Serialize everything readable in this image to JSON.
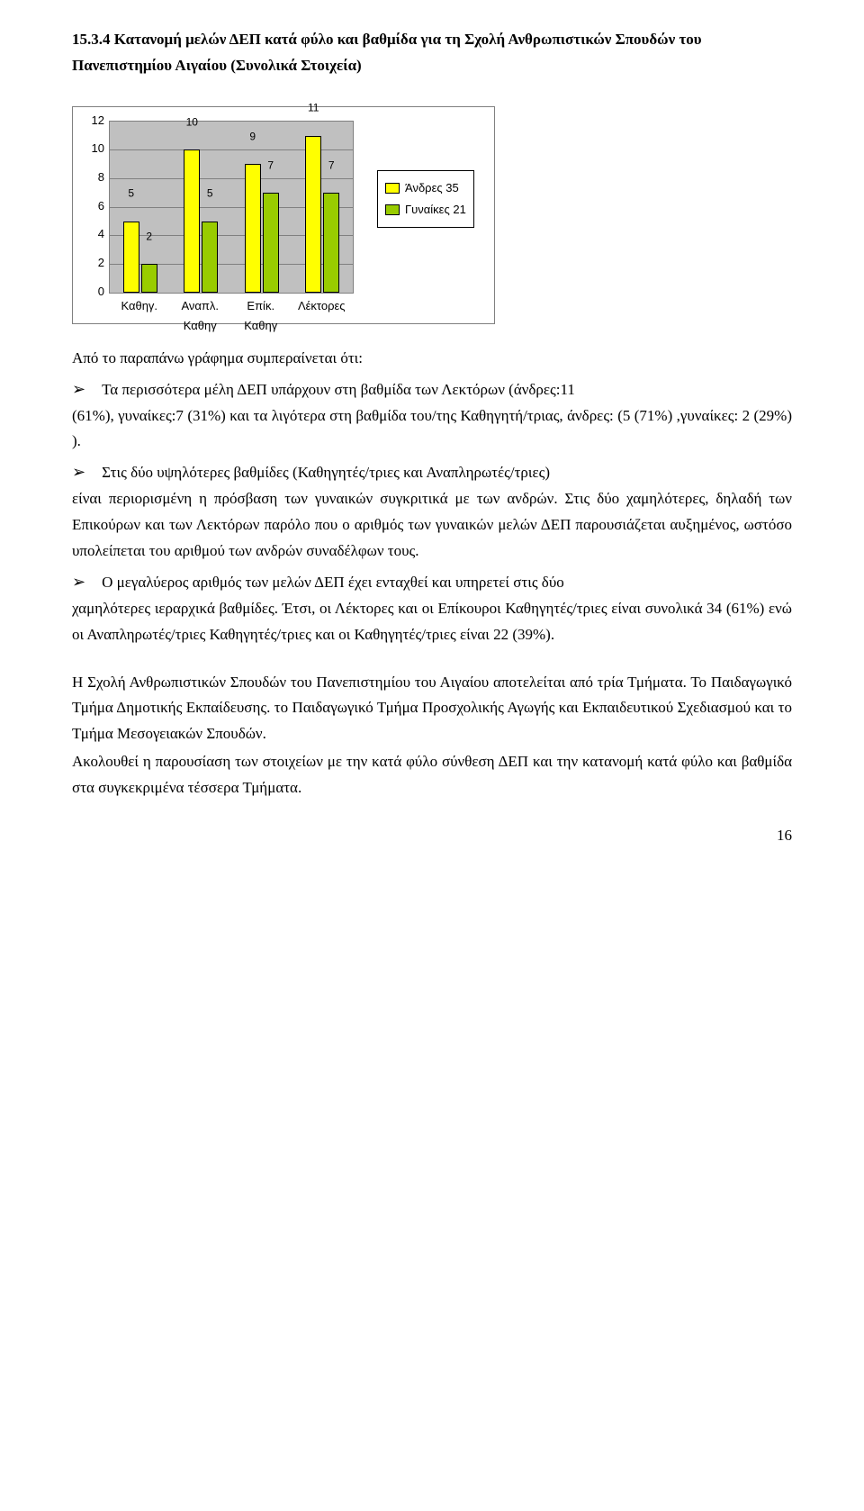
{
  "heading": "15.3.4 Κατανομή μελών ΔΕΠ κατά φύλο και βαθμίδα για τη Σχολή Ανθρωπιστικών Σπουδών του Πανεπιστημίου Αιγαίου (Συνολικά Στοιχεία)",
  "chart": {
    "type": "bar",
    "categories": [
      "Καθηγ.",
      "Αναπλ. Καθηγ",
      "Επίκ. Καθηγ",
      "Λέκτορες"
    ],
    "series": [
      {
        "label": "Άνδρες 35",
        "color": "#ffff00",
        "values": [
          5,
          10,
          9,
          11
        ]
      },
      {
        "label": "Γυναίκες 21",
        "color": "#99cc00",
        "values": [
          2,
          5,
          7,
          7
        ]
      }
    ],
    "ylim": [
      0,
      12
    ],
    "ytick_step": 2,
    "bar_colors": {
      "a": "#ffff00",
      "b": "#99cc00"
    },
    "plot_bg": "#c0c0c0",
    "grid_color": "#808080",
    "border_color": "#808080",
    "label_font": "Arial",
    "label_fontsize": 13,
    "value_fontsize": 12
  },
  "intro": "Από το παραπάνω γράφημα συμπεραίνεται ότι:",
  "bullet1": "Τα περισσότερα μέλη ΔΕΠ υπάρχουν στη βαθμίδα των Λεκτόρων (άνδρες:11",
  "bullet1_cont": "(61%), γυναίκες:7 (31%) και τα λιγότερα στη βαθμίδα του/της Καθηγητή/τριας, άνδρες: (5 (71%) ,γυναίκες: 2 (29%) ).",
  "bullet2": "Στις δύο υψηλότερες βαθμίδες (Καθηγητές/τριες και Αναπληρωτές/τριες)",
  "bullet2_cont": "είναι περιορισμένη η πρόσβαση των γυναικών συγκριτικά με των ανδρών. Στις δύο χαμηλότερες, δηλαδή των Επικούρων και των Λεκτόρων παρόλο που ο αριθμός των γυναικών μελών ΔΕΠ παρουσιάζεται αυξημένος, ωστόσο υπολείπεται του αριθμού των ανδρών συναδέλφων τους.",
  "bullet3": "Ο μεγαλύερος αριθμός των μελών ΔΕΠ έχει ενταχθεί και υπηρετεί στις δύο",
  "bullet3_cont": "χαμηλότερες ιεραρχικά βαθμίδες. Έτσι, οι Λέκτορες και οι Επίκουροι Καθηγητές/τριες είναι συνολικά 34 (61%) ενώ οι Αναπληρωτές/τριες Καθηγητές/τριες και οι Καθηγητές/τριες είναι 22 (39%).",
  "para1": "Η Σχολή Ανθρωπιστικών Σπουδών του Πανεπιστημίου του Αιγαίου αποτελείται από τρία Τμήματα. Το Παιδαγωγικό Τμήμα Δημοτικής Εκπαίδευσης. το Παιδαγωγικό Τμήμα Προσχολικής Αγωγής και Εκπαιδευτικού Σχεδιασμού και το Τμήμα Μεσογειακών Σπουδών.",
  "para2": "Ακολουθεί η παρουσίαση των στοιχείων με την κατά φύλο σύνθεση ΔΕΠ και την κατανομή κατά φύλο και βαθμίδα στα συγκεκριμένα τέσσερα Τμήματα.",
  "page_number": "16"
}
